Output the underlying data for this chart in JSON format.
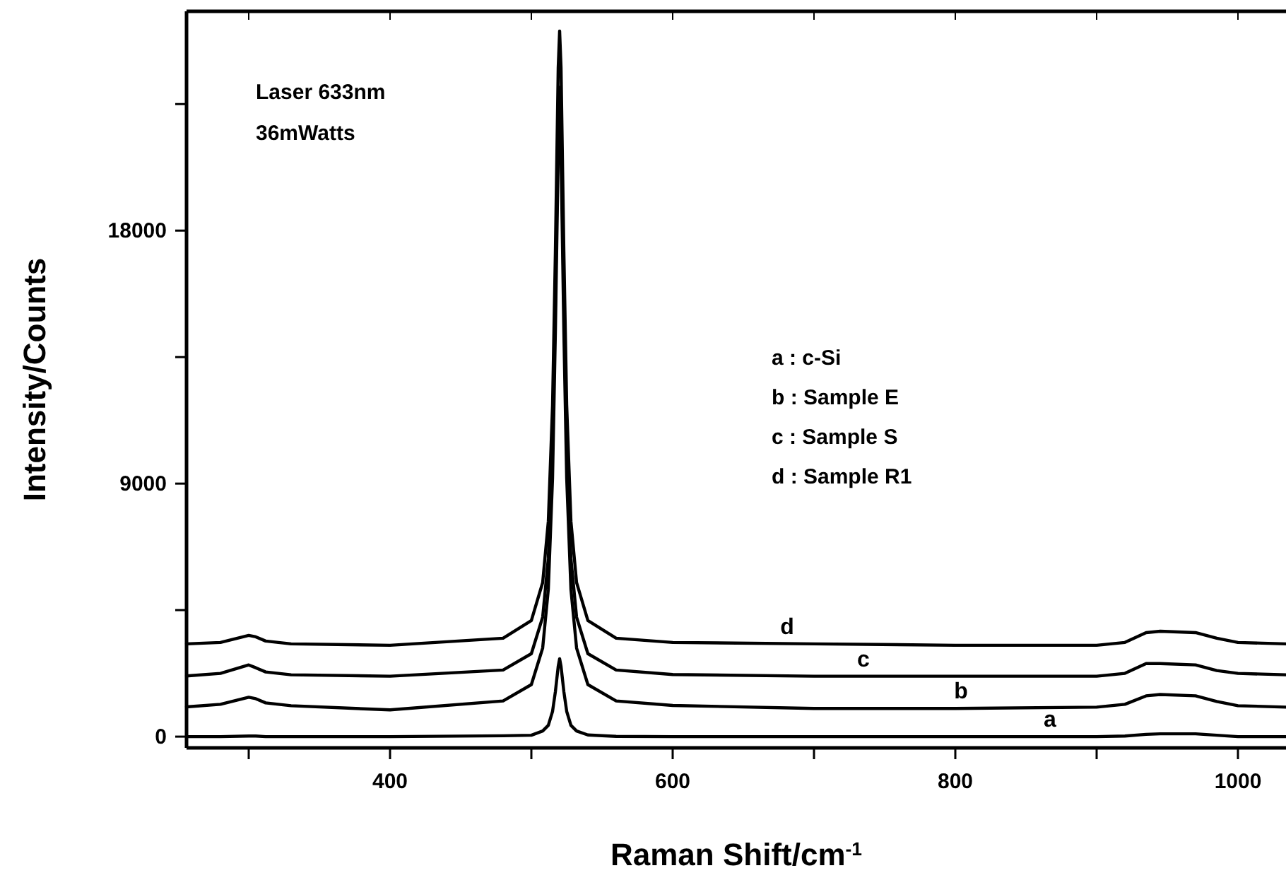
{
  "chart_data": {
    "type": "line",
    "xlabel": "Raman Shift/cm$^{-1}$",
    "ylabel": "Intensity/Counts",
    "x": [
      256,
      280,
      300,
      305,
      312,
      330,
      400,
      480,
      500,
      508,
      512,
      515,
      517,
      519,
      520,
      521,
      523,
      525,
      528,
      532,
      540,
      560,
      600,
      700,
      800,
      900,
      920,
      935,
      945,
      970,
      985,
      1000,
      1034
    ],
    "series": [
      {
        "color": "#000000",
        "values": [
          0,
          0,
          20,
          20,
          0,
          0,
          0,
          30,
          50,
          200,
          400,
          900,
          1600,
          2500,
          2770,
          2500,
          1600,
          900,
          400,
          200,
          60,
          10,
          0,
          0,
          0,
          0,
          20,
          80,
          100,
          100,
          50,
          0,
          0
        ]
      },
      {
        "color": "#000000",
        "values": [
          1060,
          1150,
          1400,
          1350,
          1200,
          1100,
          950,
          1270,
          1850,
          3150,
          5240,
          9200,
          14400,
          20700,
          22000,
          20700,
          14400,
          9200,
          5240,
          3150,
          1850,
          1270,
          1110,
          1000,
          1000,
          1050,
          1150,
          1450,
          1500,
          1450,
          1250,
          1100,
          1050
        ]
      },
      {
        "color": "#000000",
        "values": [
          2160,
          2250,
          2550,
          2450,
          2300,
          2200,
          2150,
          2370,
          2950,
          4250,
          6340,
          10300,
          15500,
          21800,
          23100,
          21800,
          15500,
          10300,
          6340,
          4250,
          2950,
          2370,
          2210,
          2150,
          2150,
          2150,
          2250,
          2600,
          2600,
          2550,
          2350,
          2250,
          2200
        ]
      },
      {
        "color": "#000000",
        "values": [
          3300,
          3350,
          3600,
          3550,
          3400,
          3300,
          3250,
          3500,
          4130,
          5480,
          7660,
          11800,
          17250,
          23800,
          25100,
          23800,
          17250,
          11800,
          7660,
          5480,
          4130,
          3500,
          3350,
          3300,
          3250,
          3250,
          3350,
          3700,
          3750,
          3700,
          3500,
          3350,
          3300
        ]
      }
    ],
    "xlim": [
      256,
      1034
    ],
    "xticks": [
      {
        "value": 300,
        "label": null
      },
      400,
      {
        "value": 500,
        "label": null
      },
      600,
      {
        "value": 700,
        "label": null
      },
      800,
      {
        "value": 900,
        "label": null
      },
      1000
    ],
    "ylim": [
      -400,
      25800
    ],
    "yticks": [
      0,
      {
        "value": 4500,
        "label": null
      },
      9000,
      {
        "value": 13500,
        "label": null
      },
      18000,
      {
        "value": 22500,
        "label": null
      }
    ],
    "line_style": "solid",
    "marker": "none",
    "annotations": [
      "Laser 633nm",
      "36mWatts",
      "a : c-Si",
      "b : Sample E",
      "c : Sample S",
      "d : Sample R1",
      {
        "text": "a",
        "x": 867,
        "y": 0
      },
      {
        "text": "b",
        "x": 804,
        "y": 1000
      },
      {
        "text": "c",
        "x": 735,
        "y": 2150
      },
      {
        "text": "d",
        "x": 681,
        "y": 3300
      }
    ]
  }
}
